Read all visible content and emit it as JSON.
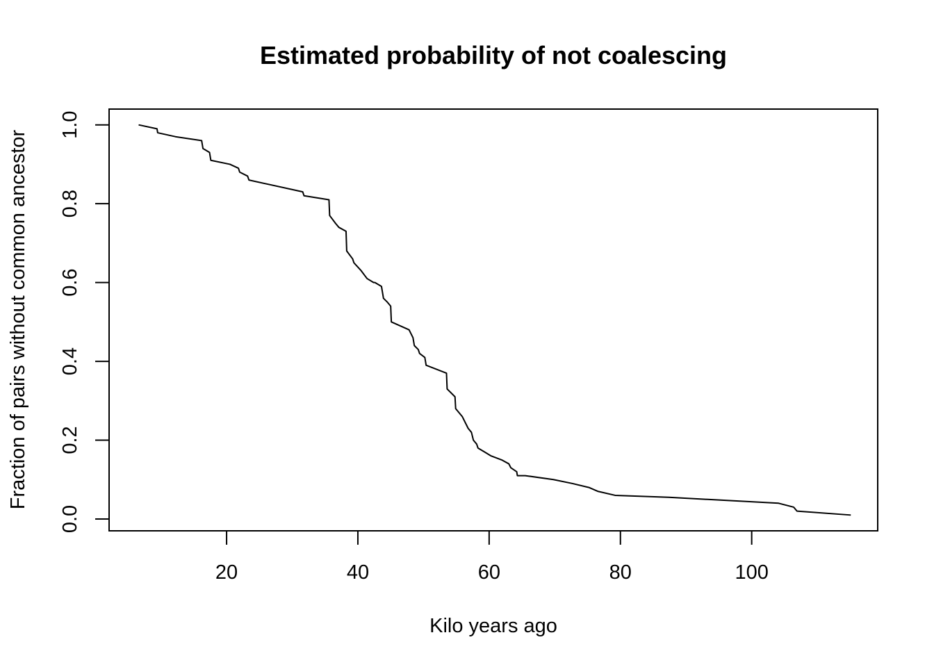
{
  "chart_data": {
    "type": "line",
    "title": "Estimated probability of not coalescing",
    "xlabel": "Kilo years ago",
    "ylabel": "Fraction of pairs without common ancestor",
    "xlim": [
      2.1,
      119.2
    ],
    "ylim": [
      -0.03,
      1.04
    ],
    "x_ticks": [
      20,
      40,
      60,
      80,
      100
    ],
    "x_tick_labels": [
      "20",
      "40",
      "60",
      "80",
      "100"
    ],
    "y_ticks": [
      0.0,
      0.2,
      0.4,
      0.6,
      0.8,
      1.0
    ],
    "y_tick_labels": [
      "0.0",
      "0.2",
      "0.4",
      "0.6",
      "0.8",
      "1.0"
    ],
    "grid": false,
    "legend": false,
    "line_color": "#000000",
    "series": [
      {
        "x": [
          6.6,
          9.4,
          9.5,
          12.2,
          16.2,
          16.4,
          17.4,
          17.6,
          20.5,
          21.8,
          22.0,
          23.2,
          23.4,
          31.6,
          31.8,
          35.6,
          35.7,
          36.6,
          37.1,
          38.2,
          38.3,
          39.2,
          39.4,
          40.5,
          41.4,
          42.4,
          42.6,
          43.6,
          43.9,
          44.5,
          45.0,
          45.1,
          47.8,
          48.4,
          48.6,
          49.2,
          49.4,
          50.2,
          50.4,
          53.5,
          53.6,
          54.8,
          54.9,
          55.9,
          56.8,
          57.3,
          57.6,
          58.1,
          58.3,
          59.3,
          60.3,
          61.9,
          63.0,
          63.3,
          64.2,
          64.3,
          65.5,
          69.8,
          72.7,
          75.2,
          76.6,
          79.2,
          87.4,
          104.1,
          106.4,
          106.9,
          115.1
        ],
        "y": [
          1.0,
          0.99,
          0.98,
          0.97,
          0.96,
          0.94,
          0.93,
          0.91,
          0.9,
          0.89,
          0.88,
          0.87,
          0.86,
          0.83,
          0.82,
          0.81,
          0.77,
          0.75,
          0.74,
          0.73,
          0.68,
          0.66,
          0.65,
          0.63,
          0.61,
          0.6,
          0.6,
          0.59,
          0.56,
          0.55,
          0.54,
          0.5,
          0.48,
          0.46,
          0.44,
          0.43,
          0.42,
          0.41,
          0.39,
          0.37,
          0.33,
          0.31,
          0.28,
          0.26,
          0.23,
          0.22,
          0.2,
          0.19,
          0.18,
          0.17,
          0.16,
          0.15,
          0.14,
          0.13,
          0.12,
          0.11,
          0.11,
          0.1,
          0.09,
          0.08,
          0.07,
          0.06,
          0.055,
          0.04,
          0.03,
          0.02,
          0.01
        ]
      }
    ]
  }
}
